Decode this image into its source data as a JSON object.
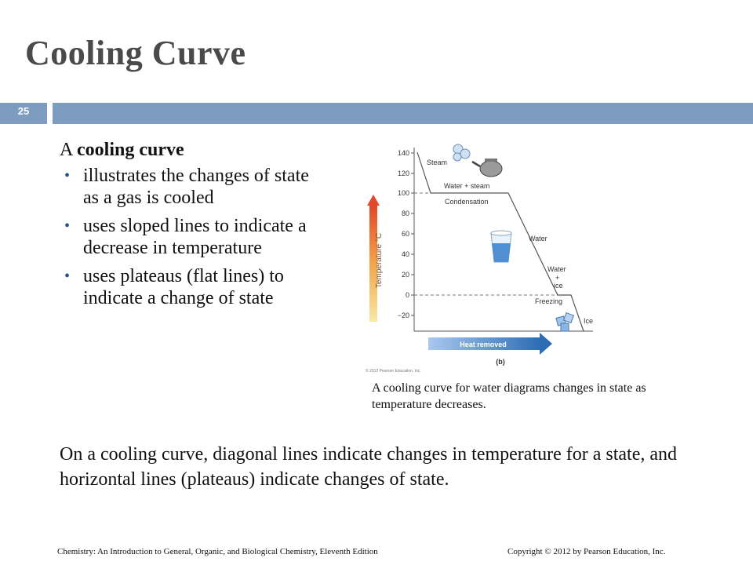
{
  "slide": {
    "title": "Cooling Curve",
    "number": "25",
    "intro_prefix": "A ",
    "intro_bold": "cooling curve",
    "bullets": [
      "illustrates the changes of state as a gas is cooled",
      "uses sloped lines to indicate a decrease in temperature",
      "uses plateaus (flat lines) to indicate a change of state"
    ],
    "caption": "A cooling curve for water diagrams changes in state as temperature decreases.",
    "summary": "On a cooling curve, diagonal lines indicate changes in temperature for a state, and horizontal lines (plateaus) indicate changes of state.",
    "footer_left": "Chemistry: An Introduction to General, Organic, and Biological Chemistry, Eleventh Edition",
    "footer_right": "Copyright © 2012 by Pearson Education, Inc."
  },
  "colors": {
    "band": "#7d9cc0",
    "title": "#4a4a4a",
    "bullet": "#2a4e86",
    "arrow_blue": "#2e6db4"
  },
  "figure": {
    "y_axis_label": "Temperature °C",
    "x_arrow_label": "Heat removed",
    "panel_label": "(b)",
    "copyright": "© 2012 Pearson Education, Inc.",
    "y_ticks": [
      "140",
      "120",
      "100",
      "80",
      "60",
      "40",
      "20",
      "0",
      "−20"
    ],
    "labels": {
      "steam": "Steam",
      "water_steam": "Water + steam",
      "condensation": "Condensation",
      "water": "Water",
      "water_ice_1": "Water",
      "water_ice_2": "+",
      "water_ice_3": "ice",
      "freezing": "Freezing",
      "ice": "Ice"
    }
  }
}
